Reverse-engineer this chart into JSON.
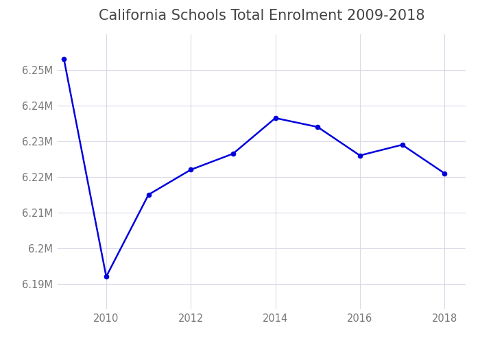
{
  "title": "California Schools Total Enrolment 2009-2018",
  "x": [
    2009,
    2010,
    2011,
    2012,
    2013,
    2014,
    2015,
    2016,
    2017,
    2018
  ],
  "y": [
    6253000,
    6192000,
    6215000,
    6222000,
    6226500,
    6236500,
    6234000,
    6226000,
    6229000,
    6221000
  ],
  "line_color": "#0000dd",
  "marker_color": "#0000dd",
  "bg_color": "#ffffff",
  "plot_bg_color": "#ffffff",
  "grid_color": "#d8d8e8",
  "title_fontsize": 15,
  "title_color": "#444444",
  "tick_color": "#777777",
  "ylim_min": 6183000,
  "ylim_max": 6260000,
  "xlim_min": 2008.85,
  "xlim_max": 2018.5,
  "xticks": [
    2010,
    2012,
    2014,
    2016,
    2018
  ],
  "yticks": [
    6190000,
    6200000,
    6210000,
    6220000,
    6230000,
    6240000,
    6250000
  ],
  "ytick_labels": [
    "6.19M",
    "6.2M",
    "6.21M",
    "6.22M",
    "6.23M",
    "6.24M",
    "6.25M"
  ]
}
